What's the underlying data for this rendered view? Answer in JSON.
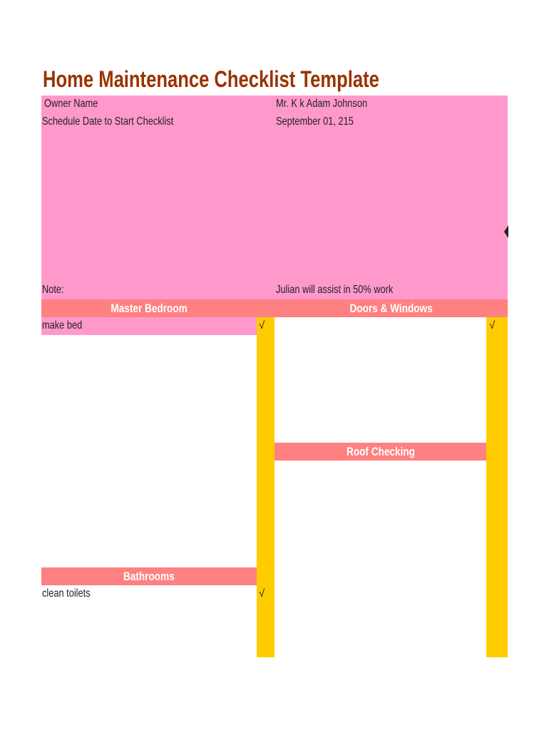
{
  "title": "Home Maintenance Checklist Template",
  "info": {
    "owner_label": "Owner Name",
    "owner_value": "Mr. K k Adam Johnson",
    "schedule_label": "Schedule Date to Start Checklist",
    "schedule_value": "September 01, 215",
    "note_label": "Note:",
    "note_value": "Julian will assist in 50% work"
  },
  "sections": {
    "master_bedroom": {
      "title": "Master Bedroom",
      "items": [
        {
          "task": "make bed",
          "check": "√"
        }
      ]
    },
    "doors_windows": {
      "title": "Doors & Windows",
      "check": "√"
    },
    "roof_checking": {
      "title": "Roof Checking"
    },
    "bathrooms": {
      "title": "Bathrooms",
      "items": [
        {
          "task": "clean toilets",
          "check": "√"
        }
      ]
    }
  },
  "colors": {
    "title": "#993300",
    "info_bg": "#ff99cc",
    "header_bg": "#ff8080",
    "check_col": "#ffcc00"
  }
}
